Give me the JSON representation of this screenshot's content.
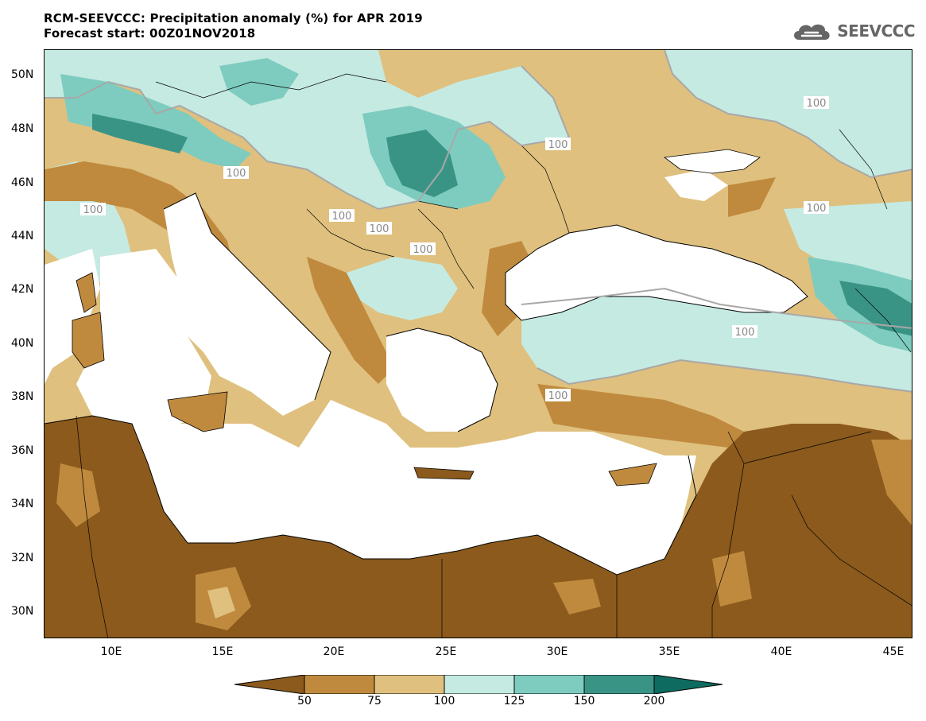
{
  "header": {
    "title": "RCM-SEEVCCC: Precipitation anomaly (%) for APR 2019",
    "subtitle": "Forecast start: 00Z01NOV2018"
  },
  "logo": {
    "text": "SEEVCCC",
    "icon": "cloud-icon"
  },
  "map": {
    "lat_labels": [
      "50N",
      "48N",
      "46N",
      "44N",
      "42N",
      "40N",
      "38N",
      "36N",
      "34N",
      "32N",
      "30N"
    ],
    "lon_labels": [
      "10E",
      "15E",
      "20E",
      "25E",
      "30E",
      "35E",
      "40E",
      "45E"
    ],
    "contour_label": "100"
  },
  "colorbar": {
    "ticks": [
      "50",
      "75",
      "100",
      "125",
      "150",
      "200"
    ],
    "colors": [
      "#8b5a1c",
      "#c08a3e",
      "#dfc07e",
      "#c5eae2",
      "#7dccbf",
      "#3a9486",
      "#0d6b5f"
    ]
  },
  "palette": {
    "sea": "#ffffff",
    "dry_dark": "#8b5a1c",
    "dry_mid": "#c08a3e",
    "dry_light": "#dfc07e",
    "wet_light": "#c5eae2",
    "wet_mid": "#7dccbf",
    "wet_dark": "#3a9486",
    "wet_vdark": "#0d6b5f",
    "contour": "#a8a8a8"
  }
}
